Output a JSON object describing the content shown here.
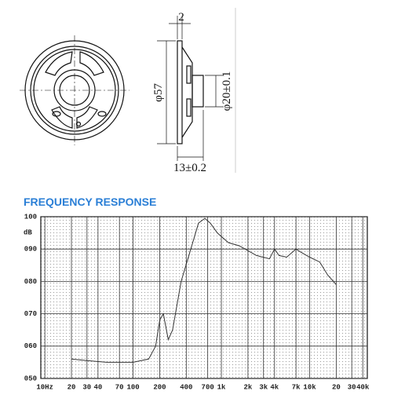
{
  "drawing": {
    "dimensions": [
      "2",
      "φ57",
      "φ20±0.1",
      "13±0.2"
    ]
  },
  "chart_data": {
    "type": "line",
    "title": "FREQUENCY RESPONSE",
    "y_label": "dB",
    "xscale": "log",
    "grid": true,
    "color": "#333333",
    "x": [
      20,
      30,
      50,
      70,
      100,
      150,
      180,
      200,
      220,
      250,
      280,
      350,
      450,
      550,
      650,
      750,
      900,
      1200,
      1600,
      2500,
      3500,
      4000,
      4500,
      5500,
      7000,
      8000,
      10000,
      13000,
      16000,
      20000
    ],
    "values": [
      56,
      55.5,
      55,
      55,
      55,
      56,
      60,
      68,
      70,
      62,
      65,
      80,
      90,
      98,
      99.5,
      98,
      95,
      92,
      91,
      88,
      87,
      90,
      88,
      87.5,
      90,
      89,
      87.5,
      86,
      82,
      79
    ],
    "xlim": [
      9,
      45000
    ],
    "ylim": [
      50,
      100
    ],
    "xticks": [
      {
        "value": 10,
        "label": "10Hz"
      },
      20,
      30,
      40,
      70,
      100,
      200,
      400,
      700,
      {
        "value": 1000,
        "label": "1k"
      },
      {
        "value": 2000,
        "label": "2k"
      },
      {
        "value": 3000,
        "label": "3k"
      },
      {
        "value": 4000,
        "label": "4k"
      },
      {
        "value": 7000,
        "label": "7k"
      },
      {
        "value": 10000,
        "label": "10k"
      },
      {
        "value": 20000,
        "label": "20"
      },
      {
        "value": 30000,
        "label": "30"
      },
      {
        "value": 40000,
        "label": "40k"
      }
    ],
    "yticks": [
      {
        "value": 50,
        "label": "050"
      },
      {
        "value": 60,
        "label": "060"
      },
      {
        "value": 70,
        "label": "070"
      },
      {
        "value": 80,
        "label": "080"
      },
      {
        "value": 90,
        "label": "090"
      },
      100
    ]
  }
}
